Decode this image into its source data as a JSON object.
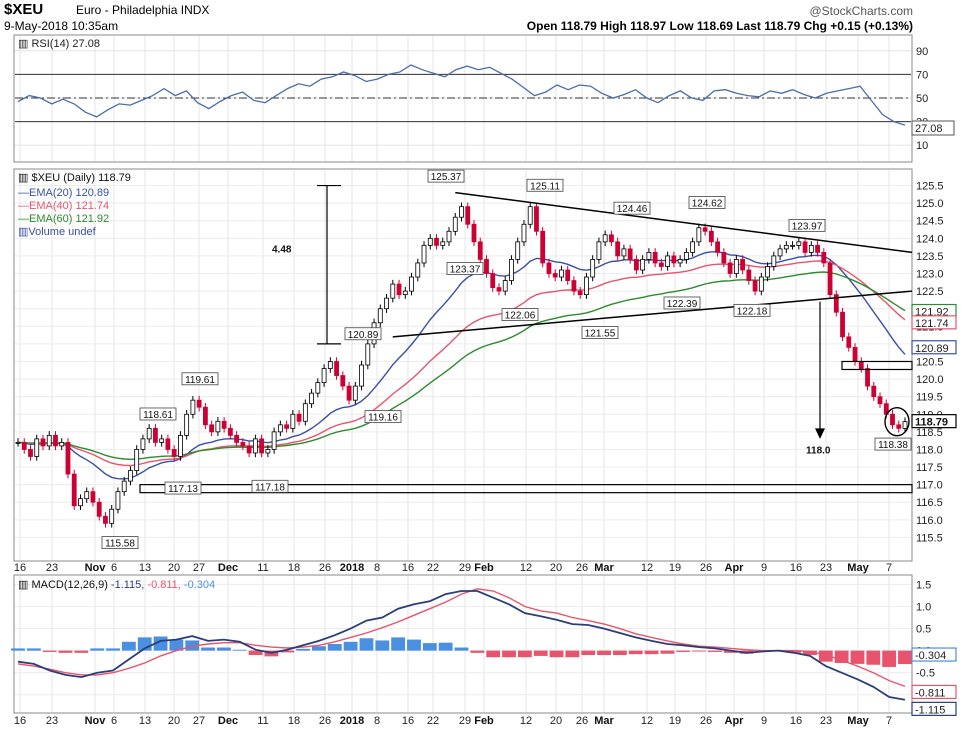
{
  "header": {
    "symbol": "$XEU",
    "description": "Euro - Philadelphia INDX",
    "brand": "@StockCharts.com",
    "date": "9-May-2018 10:35am",
    "quote": "Open 118.79  High 118.97  Low 118.69  Last 118.79  Chg +0.15 (+0.13%)"
  },
  "colors": {
    "up_candle": "#000000",
    "down_candle": "#cc0033",
    "ema20": "#3a4fa8",
    "ema40": "#e8546c",
    "ema60": "#2e8b2e",
    "rsi_line": "#4a6ea8",
    "macd_line": "#2a3f7a",
    "signal_line": "#e8546c",
    "hist_pos": "#4a8fe0",
    "hist_neg": "#e8546c"
  },
  "x_axis": {
    "labels": [
      "16",
      "23",
      "Nov",
      "6",
      "13",
      "20",
      "27",
      "Dec",
      "11",
      "18",
      "26",
      "2018",
      "8",
      "16",
      "22",
      "29",
      "Feb",
      "12",
      "20",
      "26",
      "Mar",
      "12",
      "19",
      "26",
      "Apr",
      "9",
      "16",
      "23",
      "May",
      "7"
    ],
    "bold": [
      "Nov",
      "Dec",
      "2018",
      "Feb",
      "Mar",
      "Apr",
      "May"
    ]
  },
  "chart_data": [
    {
      "type": "line",
      "name": "rsi",
      "title": "RSI(14) 27.08",
      "yticks": [
        10,
        30,
        50,
        70,
        90
      ],
      "ylim": [
        0,
        100
      ],
      "ref_lines": [
        70,
        50,
        30
      ],
      "last_value": "27.08",
      "values": [
        47,
        52,
        50,
        45,
        49,
        45,
        38,
        34,
        40,
        45,
        44,
        48,
        52,
        58,
        52,
        56,
        46,
        41,
        47,
        52,
        55,
        48,
        46,
        52,
        58,
        62,
        60,
        66,
        68,
        72,
        69,
        64,
        66,
        70,
        72,
        78,
        74,
        71,
        68,
        74,
        77,
        74,
        76,
        71,
        66,
        59,
        52,
        55,
        61,
        57,
        61,
        60,
        54,
        50,
        53,
        57,
        50,
        46,
        52,
        56,
        50,
        48,
        56,
        57,
        54,
        52,
        51,
        56,
        54,
        57,
        53,
        50,
        54,
        56,
        58,
        60,
        48,
        36,
        30,
        27
      ]
    },
    {
      "type": "candlestick",
      "name": "price",
      "title": "$XEU (Daily) 118.79",
      "legend": [
        {
          "label": "EMA(20) 120.89",
          "color": "#3a4fa8"
        },
        {
          "label": "EMA(40) 121.74",
          "color": "#e8546c"
        },
        {
          "label": "EMA(60) 121.92",
          "color": "#2e8b2e"
        },
        {
          "label": "Volume undef",
          "color": "#3a4fa8"
        }
      ],
      "yticks": [
        115.5,
        116.0,
        116.5,
        117.0,
        117.5,
        118.0,
        118.5,
        119.0,
        119.5,
        120.0,
        120.5,
        121.0,
        121.5,
        122.0,
        122.5,
        123.0,
        123.5,
        124.0,
        124.5,
        125.0,
        125.5
      ],
      "ytick_labels": [
        "115.5",
        "116.0",
        "116.5",
        "117.0",
        "117.5",
        "118.0",
        "118.5",
        "119.0",
        "119.5",
        "120.0",
        "120.5",
        "121.0",
        "121.5",
        "122.0",
        "122.5",
        "123.0",
        "123.5",
        "124.0",
        "124.5",
        "125.0",
        "125.5"
      ],
      "ylim": [
        115.0,
        125.8
      ],
      "closes": [
        118.2,
        118.0,
        117.8,
        118.3,
        118.1,
        118.4,
        118.1,
        118.2,
        117.3,
        116.4,
        116.6,
        116.8,
        116.5,
        116.1,
        115.9,
        116.3,
        116.8,
        117.1,
        117.4,
        118.0,
        118.3,
        118.6,
        118.2,
        118.3,
        118.0,
        117.8,
        118.4,
        119.0,
        119.4,
        119.2,
        118.7,
        118.5,
        118.8,
        118.6,
        118.4,
        118.2,
        118.1,
        117.9,
        118.3,
        117.9,
        118.0,
        118.5,
        118.7,
        118.6,
        119.0,
        118.8,
        119.3,
        119.6,
        119.9,
        120.3,
        120.5,
        120.1,
        119.8,
        119.4,
        119.8,
        120.4,
        121.0,
        121.6,
        122.0,
        122.3,
        122.7,
        122.4,
        122.5,
        122.9,
        123.3,
        123.8,
        124.0,
        123.8,
        123.9,
        124.2,
        124.6,
        124.9,
        124.4,
        123.9,
        123.4,
        123.0,
        122.6,
        122.5,
        122.8,
        123.4,
        123.9,
        124.4,
        124.9,
        124.2,
        123.3,
        123.0,
        122.9,
        123.1,
        122.8,
        122.5,
        122.4,
        122.9,
        123.4,
        123.9,
        124.1,
        123.9,
        123.5,
        123.7,
        123.4,
        123.1,
        123.4,
        123.6,
        123.3,
        123.2,
        123.5,
        123.3,
        123.4,
        123.6,
        123.9,
        124.3,
        124.2,
        123.9,
        123.6,
        123.3,
        123.0,
        123.4,
        123.1,
        122.8,
        122.5,
        122.9,
        123.2,
        123.5,
        123.7,
        123.8,
        123.8,
        123.9,
        123.6,
        123.8,
        123.6,
        123.3,
        122.4,
        121.9,
        121.2,
        120.9,
        120.5,
        120.3,
        119.8,
        119.5,
        119.3,
        119.0,
        118.7,
        118.6,
        118.79
      ],
      "ema20_last": 120.89,
      "ema40_last": 121.74,
      "ema60_last": 121.92,
      "last_price": "118.79",
      "price_badges": [
        "121.92",
        "121.74",
        "120.89",
        "118.79"
      ],
      "annotations": [
        {
          "label": "125.37",
          "price": 125.37
        },
        {
          "label": "125.11",
          "price": 125.11
        },
        {
          "label": "124.46",
          "price": 124.46
        },
        {
          "label": "124.62",
          "price": 124.62
        },
        {
          "label": "123.97",
          "price": 123.97
        },
        {
          "label": "123.37",
          "price": 123.37
        },
        {
          "label": "122.06",
          "price": 122.06
        },
        {
          "label": "121.55",
          "price": 121.55
        },
        {
          "label": "122.39",
          "price": 122.39
        },
        {
          "label": "122.18",
          "price": 122.18
        },
        {
          "label": "120.89",
          "price": 120.89
        },
        {
          "label": "119.61",
          "price": 119.61
        },
        {
          "label": "118.61",
          "price": 118.61
        },
        {
          "label": "119.16",
          "price": 119.16
        },
        {
          "label": "117.13",
          "price": 117.13
        },
        {
          "label": "117.18",
          "price": 117.18
        },
        {
          "label": "115.58",
          "price": 115.58
        },
        {
          "label": "118.38",
          "price": 118.38
        }
      ],
      "measure_label": "4.48",
      "target_label": "118.0",
      "support_lines": [
        117.0,
        116.8,
        120.5
      ]
    },
    {
      "type": "line",
      "name": "macd",
      "title": "MACD(12,26,9)",
      "title_values": [
        "-1.115",
        "-0.811",
        "-0.304"
      ],
      "yticks": [
        -1.0,
        -0.5,
        0.0,
        0.5,
        1.0,
        1.5
      ],
      "ytick_labels": [
        "-1.0",
        "-0.5",
        "0.0",
        "0.5",
        "1.0",
        "1.5"
      ],
      "ylim": [
        -1.3,
        1.6
      ],
      "badges": [
        "-0.304",
        "-0.811",
        "-1.115"
      ],
      "macd": [
        -0.25,
        -0.3,
        -0.45,
        -0.55,
        -0.6,
        -0.5,
        -0.45,
        -0.2,
        0.05,
        0.22,
        0.25,
        0.33,
        0.22,
        0.25,
        0.2,
        0.02,
        -0.05,
        0.02,
        0.12,
        0.22,
        0.35,
        0.5,
        0.68,
        0.75,
        0.95,
        1.05,
        1.12,
        1.28,
        1.35,
        1.35,
        1.2,
        1.05,
        0.85,
        0.78,
        0.7,
        0.6,
        0.58,
        0.5,
        0.4,
        0.3,
        0.22,
        0.15,
        0.12,
        0.08,
        0.05,
        0.0,
        -0.05,
        -0.02,
        0.0,
        -0.05,
        -0.12,
        -0.35,
        -0.5,
        -0.65,
        -0.82,
        -1.05,
        -1.115
      ],
      "signal": [
        -0.3,
        -0.35,
        -0.42,
        -0.5,
        -0.55,
        -0.55,
        -0.5,
        -0.4,
        -0.28,
        -0.12,
        0.0,
        0.1,
        0.15,
        0.18,
        0.18,
        0.12,
        0.08,
        0.06,
        0.08,
        0.12,
        0.2,
        0.3,
        0.4,
        0.52,
        0.65,
        0.8,
        0.95,
        1.1,
        1.28,
        1.4,
        1.35,
        1.2,
        1.0,
        0.9,
        0.85,
        0.75,
        0.68,
        0.6,
        0.5,
        0.38,
        0.3,
        0.22,
        0.15,
        0.1,
        0.08,
        0.05,
        0.02,
        0.0,
        0.0,
        0.0,
        -0.02,
        -0.1,
        -0.22,
        -0.35,
        -0.5,
        -0.68,
        -0.811
      ],
      "histogram": [
        0.05,
        0.05,
        -0.03,
        -0.05,
        -0.05,
        0.05,
        0.05,
        0.2,
        0.3,
        0.32,
        0.25,
        0.23,
        0.07,
        0.07,
        0.02,
        -0.1,
        -0.13,
        -0.04,
        0.04,
        0.1,
        0.15,
        0.2,
        0.28,
        0.23,
        0.3,
        0.25,
        0.17,
        0.18,
        0.07,
        -0.05,
        -0.15,
        -0.15,
        -0.15,
        -0.12,
        -0.15,
        -0.15,
        -0.1,
        -0.1,
        -0.1,
        -0.08,
        -0.08,
        -0.07,
        -0.03,
        -0.02,
        -0.03,
        -0.05,
        -0.07,
        -0.02,
        0.0,
        -0.05,
        -0.1,
        -0.25,
        -0.28,
        -0.3,
        -0.32,
        -0.37,
        -0.304
      ]
    }
  ]
}
